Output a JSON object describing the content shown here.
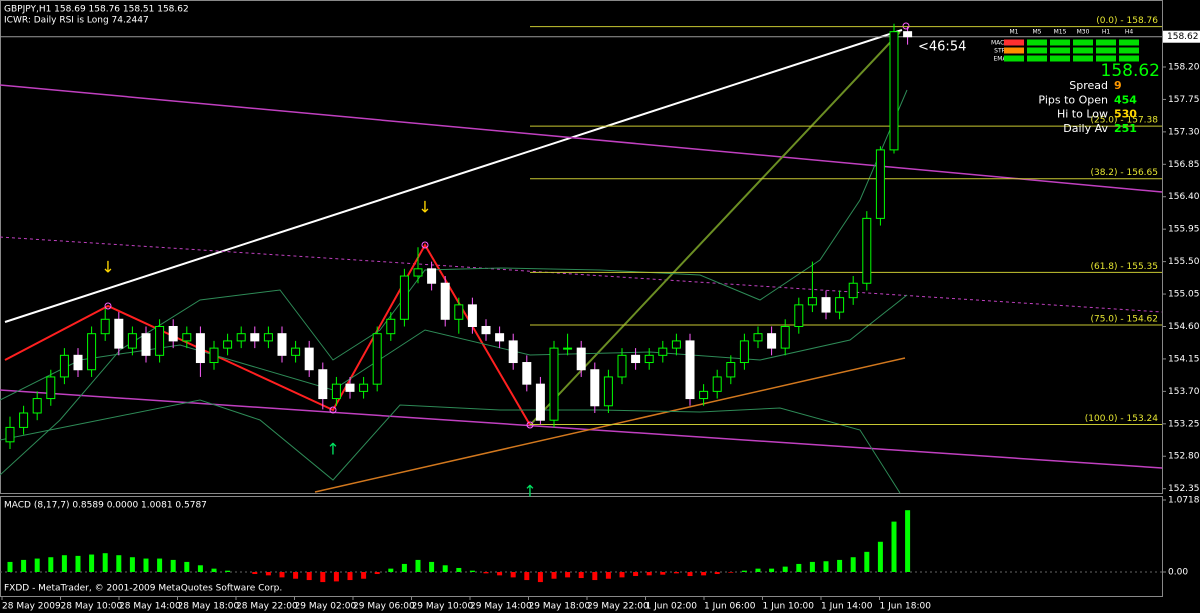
{
  "chart_data": {
    "type": "candlestick",
    "title": "GBPJPY,H1  158.69 158.76 158.51 158.62",
    "subtitle": "ICWR: Daily RSI is Long 74.2447",
    "footer": "FXDD - MetaTrader, © 2001-2009 MetaQuotes Software Corp.",
    "countdown": "<46:54",
    "categories": [
      "28 May 2009",
      "28 May 10:00",
      "28 May 14:00",
      "28 May 18:00",
      "28 May 22:00",
      "29 May 02:00",
      "29 May 06:00",
      "29 May 10:00",
      "29 May 14:00",
      "29 May 18:00",
      "29 May 22:00",
      "1 Jun 02:00",
      "1 Jun 06:00",
      "1 Jun 10:00",
      "1 Jun 14:00",
      "1 Jun 18:00"
    ],
    "open": [
      153.0,
      153.2,
      153.4,
      153.6,
      153.9,
      154.2,
      154.0,
      154.5,
      154.7,
      154.3,
      154.5,
      154.2,
      154.6,
      154.4,
      154.5,
      154.1,
      154.3,
      154.4,
      154.5,
      154.4,
      154.5,
      154.2,
      154.3,
      154.0,
      153.6,
      153.8,
      153.7,
      153.8,
      154.5,
      154.7,
      155.3,
      155.4,
      155.2,
      154.7,
      154.9,
      154.6,
      154.5,
      154.4,
      154.1,
      153.8,
      153.3,
      154.3,
      154.3,
      154.0,
      153.5,
      153.9,
      154.2,
      154.1,
      154.2,
      154.3,
      154.4,
      153.6,
      153.7,
      153.9,
      154.1,
      154.4,
      154.5,
      154.3,
      154.6,
      154.9,
      155.0,
      154.8,
      155.0,
      155.2,
      156.1,
      157.05,
      158.69
    ],
    "high": [
      153.35,
      153.5,
      153.7,
      154.0,
      154.3,
      154.3,
      154.6,
      154.85,
      154.8,
      154.6,
      154.6,
      154.7,
      154.7,
      154.6,
      154.6,
      154.4,
      154.5,
      154.6,
      154.6,
      154.6,
      154.6,
      154.4,
      154.4,
      154.1,
      153.9,
      153.9,
      153.9,
      154.6,
      154.8,
      155.4,
      155.7,
      155.5,
      155.3,
      155.0,
      155.0,
      154.7,
      154.6,
      154.5,
      154.2,
      153.9,
      154.4,
      154.5,
      154.4,
      154.1,
      154.0,
      154.3,
      154.3,
      154.3,
      154.4,
      154.5,
      154.5,
      153.8,
      154.0,
      154.2,
      154.5,
      154.6,
      154.6,
      154.7,
      155.0,
      155.5,
      155.1,
      155.1,
      155.3,
      156.2,
      157.1,
      158.8,
      158.76
    ],
    "low": [
      152.9,
      153.1,
      153.3,
      153.5,
      153.8,
      153.9,
      153.9,
      154.4,
      154.2,
      154.2,
      154.1,
      154.1,
      154.3,
      154.3,
      153.9,
      154.0,
      154.2,
      154.3,
      154.3,
      154.3,
      154.1,
      154.1,
      153.9,
      153.45,
      153.5,
      153.6,
      153.6,
      153.7,
      154.4,
      154.6,
      155.2,
      155.1,
      154.6,
      154.5,
      154.5,
      154.4,
      154.3,
      154.0,
      153.7,
      153.24,
      153.2,
      154.2,
      153.9,
      153.4,
      153.4,
      153.8,
      154.0,
      154.0,
      154.1,
      154.2,
      153.5,
      153.5,
      153.6,
      153.8,
      154.0,
      154.3,
      154.2,
      154.2,
      154.5,
      154.8,
      154.7,
      154.7,
      154.9,
      155.1,
      156.0,
      157.0,
      158.51
    ],
    "close": [
      153.2,
      153.4,
      153.6,
      153.9,
      154.2,
      154.0,
      154.5,
      154.7,
      154.3,
      154.5,
      154.2,
      154.6,
      154.4,
      154.5,
      154.1,
      154.3,
      154.4,
      154.5,
      154.4,
      154.5,
      154.2,
      154.3,
      154.0,
      153.6,
      153.8,
      153.7,
      153.8,
      154.5,
      154.7,
      155.3,
      155.4,
      155.2,
      154.7,
      154.9,
      154.6,
      154.5,
      154.4,
      154.1,
      153.8,
      153.3,
      154.3,
      154.3,
      154.0,
      153.5,
      153.9,
      154.2,
      154.1,
      154.2,
      154.3,
      154.4,
      153.6,
      153.7,
      153.9,
      154.1,
      154.4,
      154.5,
      154.3,
      154.6,
      154.9,
      155.0,
      154.8,
      155.0,
      155.2,
      156.1,
      157.05,
      158.69,
      158.62
    ],
    "up_color": "#00ff00",
    "down_color": "#ffffff",
    "ylim": [
      152.29,
      159.06
    ],
    "current_price": 158.62,
    "yticks": [
      {
        "value": 158.2,
        "label": "158.20"
      },
      157.75,
      {
        "value": 157.3,
        "label": "157.30"
      },
      156.85,
      {
        "value": 156.4,
        "label": "156.40"
      },
      155.95,
      {
        "value": 155.5,
        "label": "155.50"
      },
      155.05,
      {
        "value": 154.6,
        "label": "154.60"
      },
      154.15,
      {
        "value": 153.7,
        "label": "153.70"
      },
      153.25,
      {
        "value": 152.8,
        "label": "152.80"
      },
      152.35
    ],
    "fib_levels": [
      {
        "value": 158.76,
        "label": "(0.0) - 158.76"
      },
      {
        "value": 157.38,
        "label": "(25.0) - 157.38"
      },
      {
        "value": 156.65,
        "label": "(38.2) - 156.65"
      },
      {
        "value": 155.35,
        "label": "(61.8) - 155.35"
      },
      {
        "value": 154.62,
        "label": "(75.0) - 154.62"
      },
      {
        "value": 153.24,
        "label": "(100.0) - 153.24"
      }
    ],
    "macd": {
      "title": "MACD  (8,17,7) 0.8589 0.0000 1.0081 0.5787",
      "values": [
        0.15,
        0.18,
        0.2,
        0.22,
        0.25,
        0.24,
        0.26,
        0.28,
        0.25,
        0.22,
        0.2,
        0.2,
        0.18,
        0.15,
        0.1,
        0.05,
        0.02,
        0.0,
        -0.03,
        -0.05,
        -0.08,
        -0.1,
        -0.12,
        -0.15,
        -0.14,
        -0.12,
        -0.1,
        -0.03,
        0.05,
        0.12,
        0.18,
        0.15,
        0.1,
        0.06,
        0.02,
        -0.02,
        -0.05,
        -0.08,
        -0.12,
        -0.15,
        -0.1,
        -0.08,
        -0.09,
        -0.12,
        -0.1,
        -0.08,
        -0.06,
        -0.05,
        -0.04,
        -0.02,
        -0.06,
        -0.05,
        -0.03,
        -0.01,
        0.02,
        0.05,
        0.05,
        0.08,
        0.12,
        0.15,
        0.16,
        0.18,
        0.22,
        0.3,
        0.45,
        0.75,
        0.92
      ],
      "pos_color": "#00ff00",
      "neg_color": "#ff0000",
      "ylim": [
        -0.3424,
        1.1165
      ],
      "yticks": [
        {
          "value": 1.0718,
          "label": "1.0718"
        },
        {
          "value": 0,
          "label": "0.00"
        }
      ]
    },
    "info": {
      "price": {
        "value": 158.62,
        "label": "158.62"
      },
      "rows": [
        {
          "label": "Spread",
          "value": 9
        },
        {
          "label": "Pips to Open",
          "value": 454
        },
        {
          "label": "Hi to Low",
          "value": 530
        },
        {
          "label": "Daily Av",
          "value": 251
        }
      ],
      "timeframes": [
        "M1",
        "M5",
        "M15",
        "M30",
        "H1",
        "H4"
      ],
      "indicators": [
        "MACD",
        "STR",
        "EMA"
      ]
    }
  }
}
